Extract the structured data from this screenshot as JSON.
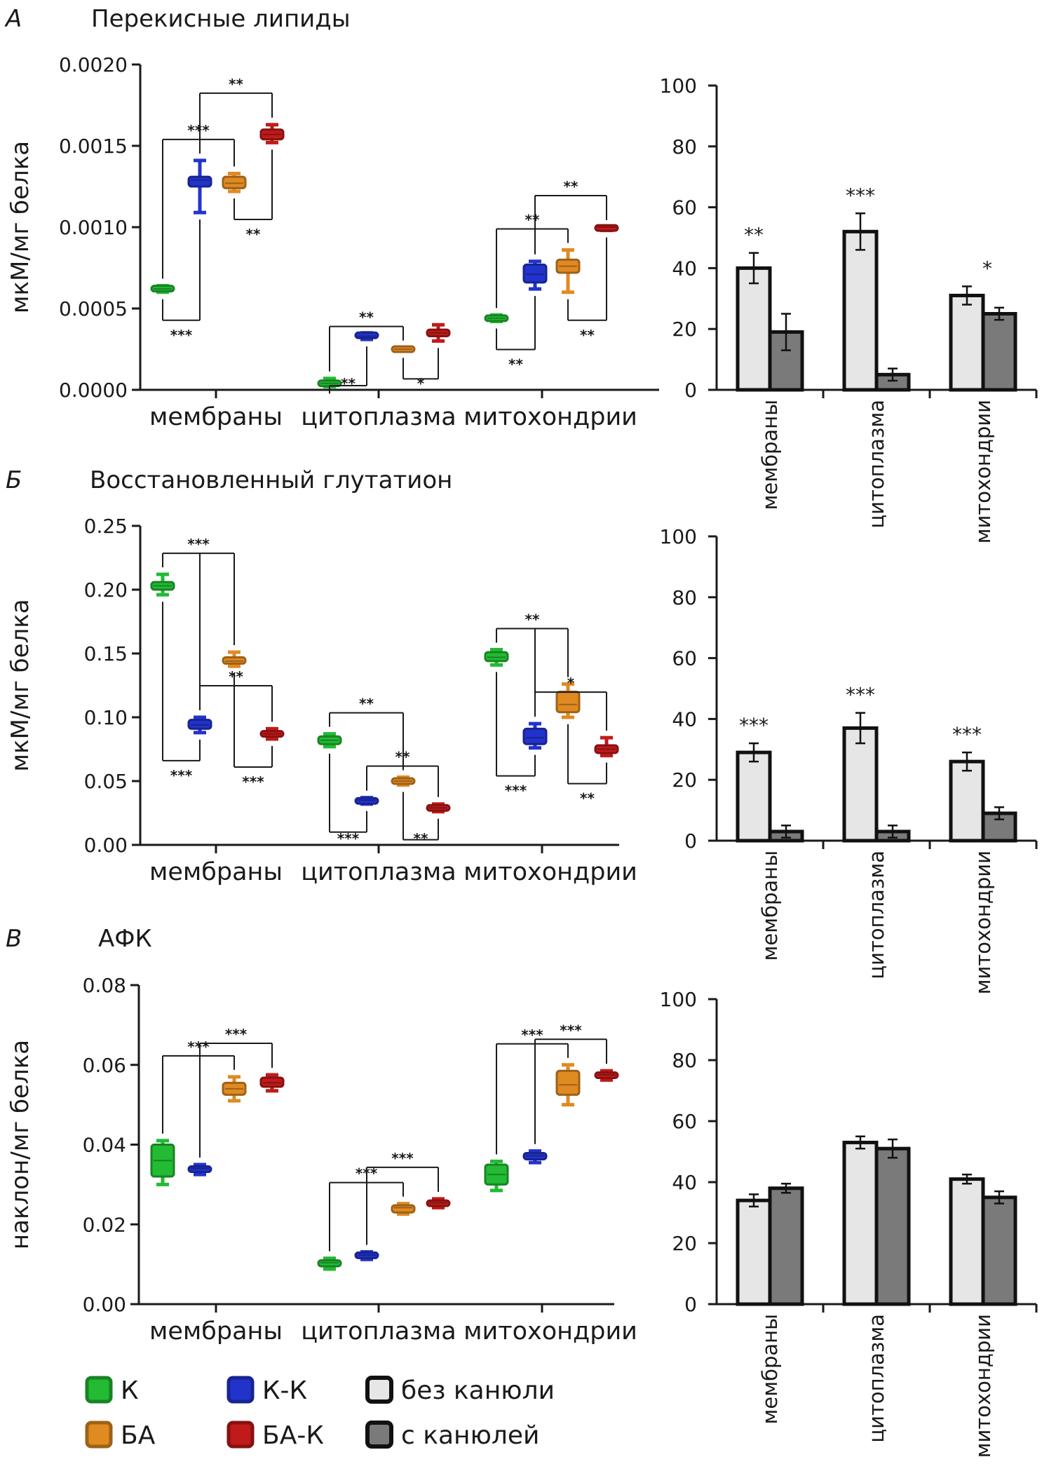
{
  "legend": [
    {
      "label": "К",
      "color": "#22bb33"
    },
    {
      "label": "К-К",
      "color": "#2233cc"
    },
    {
      "label": "без канюли",
      "color": "#e6e6e6"
    },
    {
      "label": "БА",
      "color": "#e08a22"
    },
    {
      "label": "БА-К",
      "color": "#c01a1a"
    },
    {
      "label": "с канюлей",
      "color": "#7a7a7a"
    }
  ],
  "chart_data": [
    {
      "panel": "А",
      "title": "Перекисные липиды",
      "type": "box",
      "ylabel": "мкМ/мг белка",
      "ylim": [
        0,
        0.002
      ],
      "yticks": [
        "0.0000",
        "0.0005",
        "0.0010",
        "0.0015",
        "0.0020"
      ],
      "categories": [
        "мембраны",
        "цитоплазма",
        "митохондрии"
      ],
      "groups": [
        "К",
        "К-К",
        "БА",
        "БА-К"
      ],
      "boxes": [
        [
          [
            0.0006,
            0.00061,
            0.00062,
            0.000635,
            0.00064
          ],
          [
            0.00109,
            0.00125,
            0.00129,
            0.00131,
            0.00141
          ],
          [
            0.00122,
            0.00124,
            0.00127,
            0.00131,
            0.00133
          ],
          [
            0.00152,
            0.00154,
            0.00157,
            0.0016,
            0.00163
          ]
        ],
        [
          [
            2e-05,
            3e-05,
            4e-05,
            5e-05,
            7e-05
          ],
          [
            0.00031,
            0.000325,
            0.00033,
            0.000345,
            0.00035
          ],
          [
            0.00024,
            0.000245,
            0.00025,
            0.000255,
            0.00026
          ],
          [
            0.0003,
            0.00033,
            0.00035,
            0.00037,
            0.0004
          ]
        ],
        [
          [
            0.00042,
            0.00043,
            0.00044,
            0.00045,
            0.00046
          ],
          [
            0.00062,
            0.00066,
            0.00071,
            0.00077,
            0.00079
          ],
          [
            0.0006,
            0.00072,
            0.00076,
            0.0008,
            0.00086
          ],
          [
            0.00098,
            0.00099,
            0.001,
            0.001,
            0.001
          ]
        ]
      ],
      "brackets_above": [
        [
          {
            "from": 0,
            "to": [
              1,
              2
            ],
            "label": "***"
          },
          {
            "from": 1,
            "to": [
              3
            ],
            "label": "**"
          }
        ],
        [
          {
            "from": 0,
            "to": [
              2
            ],
            "label": "**"
          }
        ],
        [
          {
            "from": 0,
            "to": [
              1,
              2
            ],
            "label": "**"
          },
          {
            "from": 1,
            "to": [
              3
            ],
            "label": "**"
          }
        ]
      ],
      "brackets_below": [
        [
          {
            "from": 0,
            "to": 1,
            "label": "***"
          },
          {
            "from": 2,
            "to": 3,
            "label": "**"
          }
        ],
        [
          {
            "from": 0,
            "to": 1,
            "label": "**"
          },
          {
            "from": 2,
            "to": 3,
            "label": "*"
          }
        ],
        [
          {
            "from": 0,
            "to": 1,
            "label": "**"
          },
          {
            "from": 2,
            "to": 3,
            "label": "**"
          }
        ]
      ],
      "bars": {
        "ylim": [
          0,
          100
        ],
        "yticks": [
          "0",
          "20",
          "40",
          "60",
          "80",
          "100"
        ],
        "categories": [
          "мембраны",
          "цитоплазма",
          "митохондрии"
        ],
        "series": [
          {
            "name": "без канюли",
            "values": [
              40,
              52,
              31
            ],
            "errors": [
              5,
              6,
              3
            ]
          },
          {
            "name": "с канюлей",
            "values": [
              19,
              5,
              25
            ],
            "errors": [
              6,
              2,
              2
            ]
          }
        ],
        "sig": [
          "**",
          "***",
          "*"
        ]
      }
    },
    {
      "panel": "Б",
      "title": "Восстановленный глутатион",
      "type": "box",
      "ylabel": "мкМ/мг белка",
      "ylim": [
        0,
        0.25
      ],
      "yticks": [
        "0.00",
        "0.05",
        "0.10",
        "0.15",
        "0.20",
        "0.25"
      ],
      "categories": [
        "мембраны",
        "цитоплазма",
        "митохондрии"
      ],
      "groups": [
        "К",
        "К-К",
        "БА",
        "БА-К"
      ],
      "boxes": [
        [
          [
            0.196,
            0.2,
            0.203,
            0.206,
            0.212
          ],
          [
            0.088,
            0.091,
            0.094,
            0.098,
            0.1
          ],
          [
            0.14,
            0.142,
            0.144,
            0.147,
            0.151
          ],
          [
            0.083,
            0.085,
            0.087,
            0.089,
            0.091
          ]
        ],
        [
          [
            0.077,
            0.079,
            0.082,
            0.085,
            0.087
          ],
          [
            0.032,
            0.033,
            0.035,
            0.036,
            0.037
          ],
          [
            0.047,
            0.048,
            0.05,
            0.052,
            0.053
          ],
          [
            0.026,
            0.027,
            0.029,
            0.031,
            0.032
          ]
        ],
        [
          [
            0.141,
            0.144,
            0.147,
            0.151,
            0.153
          ],
          [
            0.076,
            0.079,
            0.084,
            0.091,
            0.095
          ],
          [
            0.1,
            0.104,
            0.11,
            0.12,
            0.126
          ],
          [
            0.07,
            0.072,
            0.075,
            0.078,
            0.084
          ]
        ]
      ],
      "brackets_above": [
        [
          {
            "from": 0,
            "to": [
              1,
              2
            ],
            "label": "***"
          },
          {
            "from": 1,
            "to": [
              3
            ],
            "label": "**"
          }
        ],
        [
          {
            "from": 0,
            "to": [
              2
            ],
            "label": "**"
          },
          {
            "from": 1,
            "to": [
              3
            ],
            "label": "**"
          }
        ],
        [
          {
            "from": 0,
            "to": [
              1,
              2
            ],
            "label": "**"
          },
          {
            "from": 1,
            "to": [
              3
            ],
            "label": "*"
          }
        ]
      ],
      "brackets_below": [
        [
          {
            "from": 0,
            "to": 1,
            "label": "***"
          },
          {
            "from": 2,
            "to": 3,
            "label": "***"
          }
        ],
        [
          {
            "from": 0,
            "to": 1,
            "label": "***"
          },
          {
            "from": 2,
            "to": 3,
            "label": "**"
          }
        ],
        [
          {
            "from": 0,
            "to": 1,
            "label": "***"
          },
          {
            "from": 2,
            "to": 3,
            "label": "**"
          }
        ]
      ],
      "bars": {
        "ylim": [
          0,
          100
        ],
        "yticks": [
          "0",
          "20",
          "40",
          "60",
          "80",
          "100"
        ],
        "categories": [
          "мембраны",
          "цитоплазма",
          "митохондрии"
        ],
        "series": [
          {
            "name": "без канюли",
            "values": [
              29,
              37,
              26
            ],
            "errors": [
              3,
              5,
              3
            ]
          },
          {
            "name": "с канюлей",
            "values": [
              3,
              3,
              9
            ],
            "errors": [
              2,
              2,
              2
            ]
          }
        ],
        "sig": [
          "***",
          "***",
          "***"
        ]
      }
    },
    {
      "panel": "В",
      "title": "АФК",
      "type": "box",
      "ylabel": "наклон/мг белка",
      "ylim": [
        0,
        0.08
      ],
      "yticks": [
        "0.00",
        "0.02",
        "0.04",
        "0.06",
        "0.08"
      ],
      "categories": [
        "мембраны",
        "цитоплазма",
        "митохондрии"
      ],
      "groups": [
        "К",
        "К-К",
        "БА",
        "БА-К"
      ],
      "boxes": [
        [
          [
            0.03,
            0.032,
            0.036,
            0.04,
            0.041
          ],
          [
            0.0325,
            0.0332,
            0.034,
            0.0345,
            0.035
          ],
          [
            0.051,
            0.0525,
            0.054,
            0.0555,
            0.057
          ],
          [
            0.0535,
            0.0545,
            0.0555,
            0.0568,
            0.0575
          ]
        ],
        [
          [
            0.0088,
            0.0095,
            0.0104,
            0.011,
            0.0115
          ],
          [
            0.0112,
            0.0117,
            0.0123,
            0.0128,
            0.0131
          ],
          [
            0.0226,
            0.023,
            0.0242,
            0.0248,
            0.0252
          ],
          [
            0.0242,
            0.0246,
            0.0254,
            0.026,
            0.0264
          ]
        ],
        [
          [
            0.0285,
            0.03,
            0.0325,
            0.035,
            0.0358
          ],
          [
            0.0355,
            0.0363,
            0.0372,
            0.0379,
            0.0384
          ],
          [
            0.05,
            0.0525,
            0.055,
            0.0585,
            0.06
          ],
          [
            0.0562,
            0.0568,
            0.0575,
            0.058,
            0.0585
          ]
        ]
      ],
      "brackets_above": [
        [
          {
            "from": 0,
            "to": [
              1,
              2
            ],
            "label": "***"
          },
          {
            "from": 1,
            "to": [
              3
            ],
            "label": "***"
          }
        ],
        [
          {
            "from": 0,
            "to": [
              1,
              2
            ],
            "label": "***"
          },
          {
            "from": 1,
            "to": [
              3
            ],
            "label": "***"
          }
        ],
        [
          {
            "from": 0,
            "to": [
              1,
              2
            ],
            "label": "***"
          },
          {
            "from": 1,
            "to": [
              3
            ],
            "label": "***"
          }
        ]
      ],
      "brackets_below": [
        [],
        [],
        []
      ],
      "bars": {
        "ylim": [
          0,
          100
        ],
        "yticks": [
          "0",
          "20",
          "40",
          "60",
          "80",
          "100"
        ],
        "categories": [
          "мембраны",
          "цитоплазма",
          "митохондрии"
        ],
        "series": [
          {
            "name": "без канюли",
            "values": [
              34,
              53,
              41
            ],
            "errors": [
              2,
              2,
              1.5
            ]
          },
          {
            "name": "с канюлей",
            "values": [
              38,
              51,
              35
            ],
            "errors": [
              1.5,
              3,
              2
            ]
          }
        ],
        "sig": [
          "",
          "",
          ""
        ]
      }
    }
  ]
}
